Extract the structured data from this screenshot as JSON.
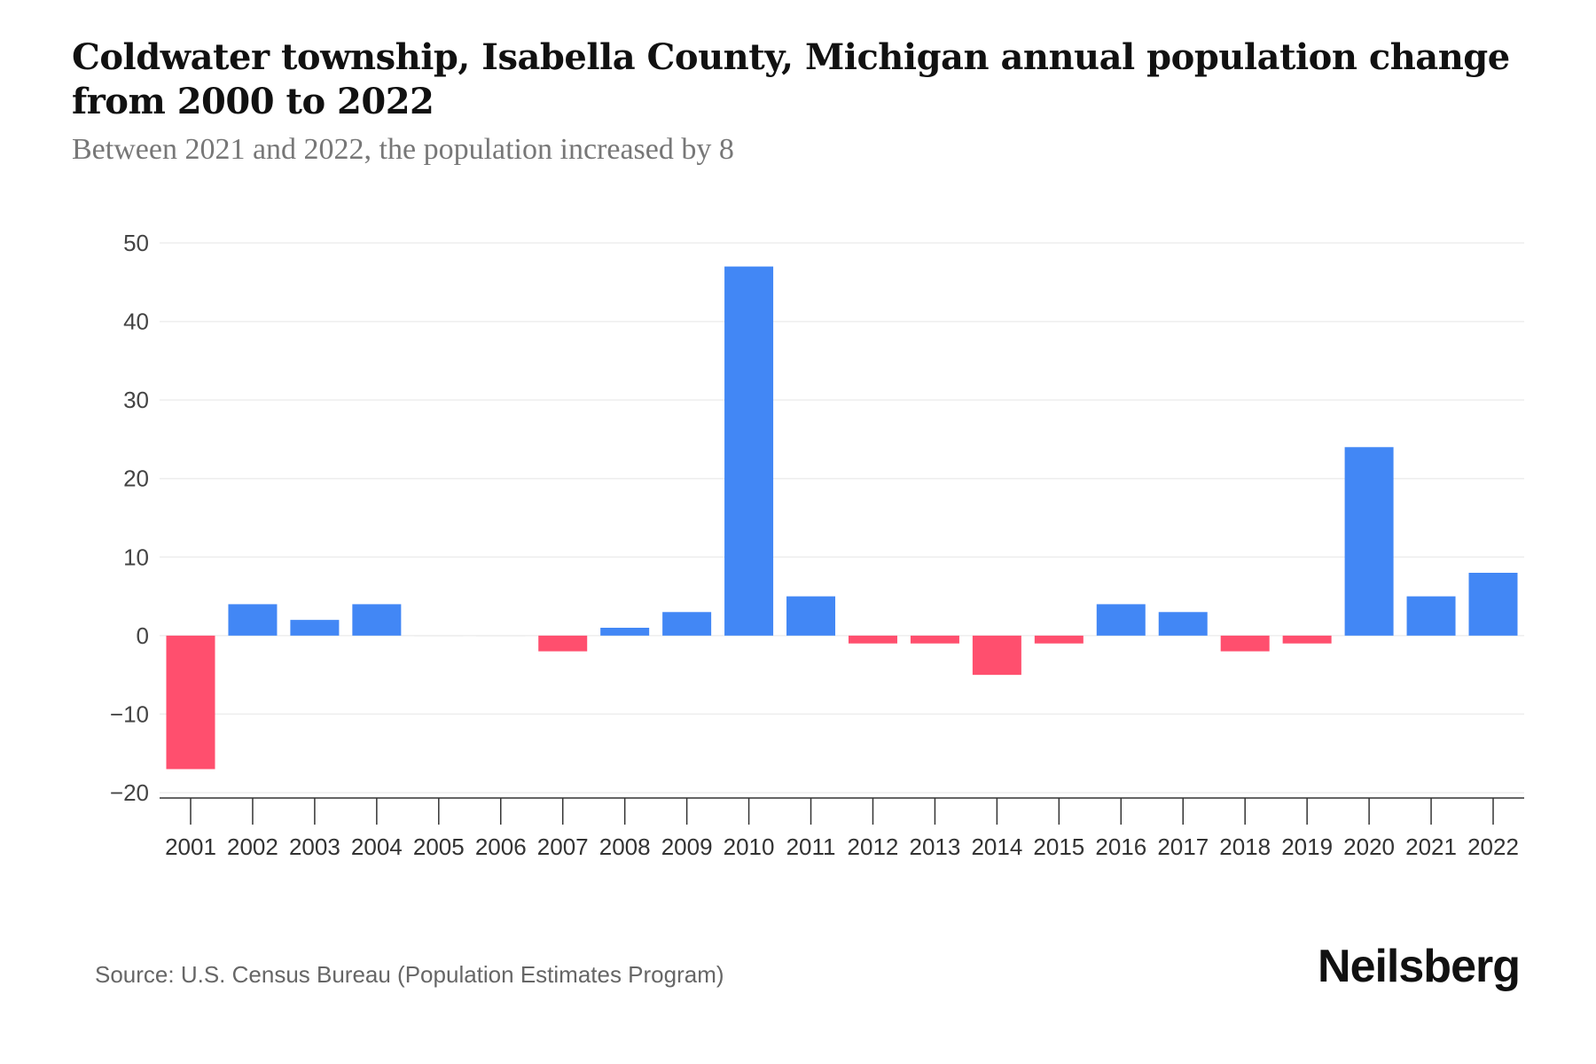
{
  "chart_data": {
    "type": "bar",
    "title": "Coldwater township, Isabella County, Michigan annual population change from 2000 to 2022",
    "subtitle": "Between 2021 and 2022, the population increased by 8",
    "categories": [
      "2001",
      "2002",
      "2003",
      "2004",
      "2005",
      "2006",
      "2007",
      "2008",
      "2009",
      "2010",
      "2011",
      "2012",
      "2013",
      "2014",
      "2015",
      "2016",
      "2017",
      "2018",
      "2019",
      "2020",
      "2021",
      "2022"
    ],
    "values": [
      -17,
      4,
      2,
      4,
      0,
      0,
      -2,
      1,
      3,
      47,
      5,
      -1,
      -1,
      -5,
      -1,
      4,
      3,
      -2,
      -1,
      24,
      5,
      8
    ],
    "xlabel": "",
    "ylabel": "",
    "ylim": [
      -20,
      50
    ],
    "yticks": [
      50,
      40,
      30,
      20,
      10,
      0,
      -10,
      -20
    ],
    "ytick_labels": [
      "50",
      "40",
      "30",
      "20",
      "10",
      "0",
      "−10",
      "−20"
    ],
    "grid": true,
    "colors": {
      "positive": "#4287f5",
      "negative": "#ff4f6e"
    }
  },
  "source": "Source: U.S. Census Bureau (Population Estimates Program)",
  "brand": "Neilsberg"
}
